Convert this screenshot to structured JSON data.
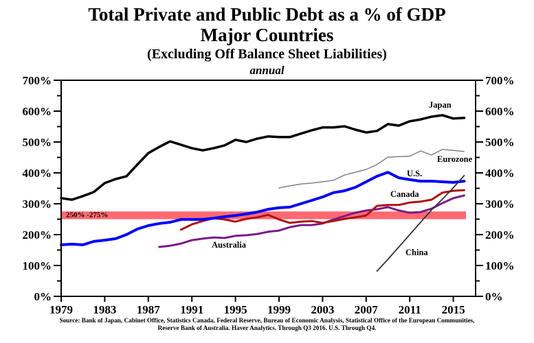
{
  "chart_data": {
    "type": "line",
    "title": "Total Private and Public Debt as a % of GDP",
    "subtitle": "Major Countries",
    "subtitle2": "(Excluding Off Balance Sheet Liabilities)",
    "frequency_note": "annual",
    "xlabel": "",
    "ylabel": "",
    "xlim": [
      1979,
      2017
    ],
    "ylim": [
      0,
      700
    ],
    "y_ticks": [
      "0%",
      "100%",
      "200%",
      "300%",
      "400%",
      "500%",
      "600%",
      "700%"
    ],
    "y_tick_values": [
      0,
      100,
      200,
      300,
      400,
      500,
      600,
      700
    ],
    "x_ticks": [
      "1979",
      "1983",
      "1987",
      "1991",
      "1995",
      "1999",
      "2003",
      "2007",
      "2011",
      "2015"
    ],
    "x_tick_values": [
      1979,
      1983,
      1987,
      1991,
      1995,
      1999,
      2003,
      2007,
      2011,
      2015
    ],
    "dual_y_axis": true,
    "grid": false,
    "legend": "inline labels",
    "band": {
      "label": "250% -275%",
      "from": 250,
      "to": 275,
      "color": "#ff6a70"
    },
    "series": [
      {
        "name": "Japan",
        "color": "#000000",
        "start_year": 1979,
        "values": [
          318,
          313,
          325,
          338,
          367,
          380,
          389,
          427,
          464,
          484,
          502,
          491,
          480,
          473,
          480,
          489,
          507,
          500,
          511,
          518,
          516,
          516,
          527,
          538,
          547,
          547,
          551,
          540,
          531,
          536,
          558,
          553,
          567,
          573,
          582,
          587,
          576,
          578
        ]
      },
      {
        "name": "Eurozone",
        "color": "#808080",
        "start_year": 1999,
        "values": [
          351,
          358,
          364,
          367,
          371,
          376,
          393,
          402,
          411,
          427,
          451,
          453,
          454,
          471,
          458,
          476,
          473,
          469
        ]
      },
      {
        "name": "U.S.",
        "color": "#0000ff",
        "start_year": 1979,
        "values": [
          167,
          169,
          167,
          178,
          182,
          187,
          200,
          218,
          229,
          236,
          240,
          249,
          249,
          249,
          253,
          258,
          262,
          267,
          273,
          282,
          287,
          289,
          300,
          311,
          322,
          336,
          342,
          353,
          371,
          389,
          402,
          384,
          378,
          373,
          373,
          371,
          369,
          373
        ]
      },
      {
        "name": "Canada",
        "color": "#b01010",
        "start_year": 1990,
        "values": [
          216,
          233,
          244,
          253,
          249,
          242,
          251,
          256,
          264,
          249,
          238,
          242,
          244,
          238,
          244,
          251,
          256,
          262,
          293,
          296,
          296,
          304,
          307,
          313,
          336,
          342,
          344
        ]
      },
      {
        "name": "Australia",
        "color": "#7a1a8a",
        "start_year": 1988,
        "values": [
          160,
          164,
          171,
          182,
          187,
          191,
          189,
          196,
          198,
          202,
          209,
          213,
          224,
          231,
          231,
          236,
          249,
          260,
          271,
          278,
          282,
          289,
          278,
          271,
          273,
          284,
          302,
          318,
          327
        ]
      },
      {
        "name": "China",
        "color": "#333333",
        "start_year": 2008,
        "values": [
          82,
          120,
          160,
          200,
          240,
          280,
          315,
          352,
          391
        ]
      }
    ],
    "source": "Source: Bank of Japan, Cabinet Office, Statistics Canada, Federal Reserve, Bureau of Economic Analysis, Statistical Office of the European Communities,",
    "source_line2": "Reserve Bank of Australia. Haver Analytics. Through Q3 2016. U.S. Through Q4."
  }
}
